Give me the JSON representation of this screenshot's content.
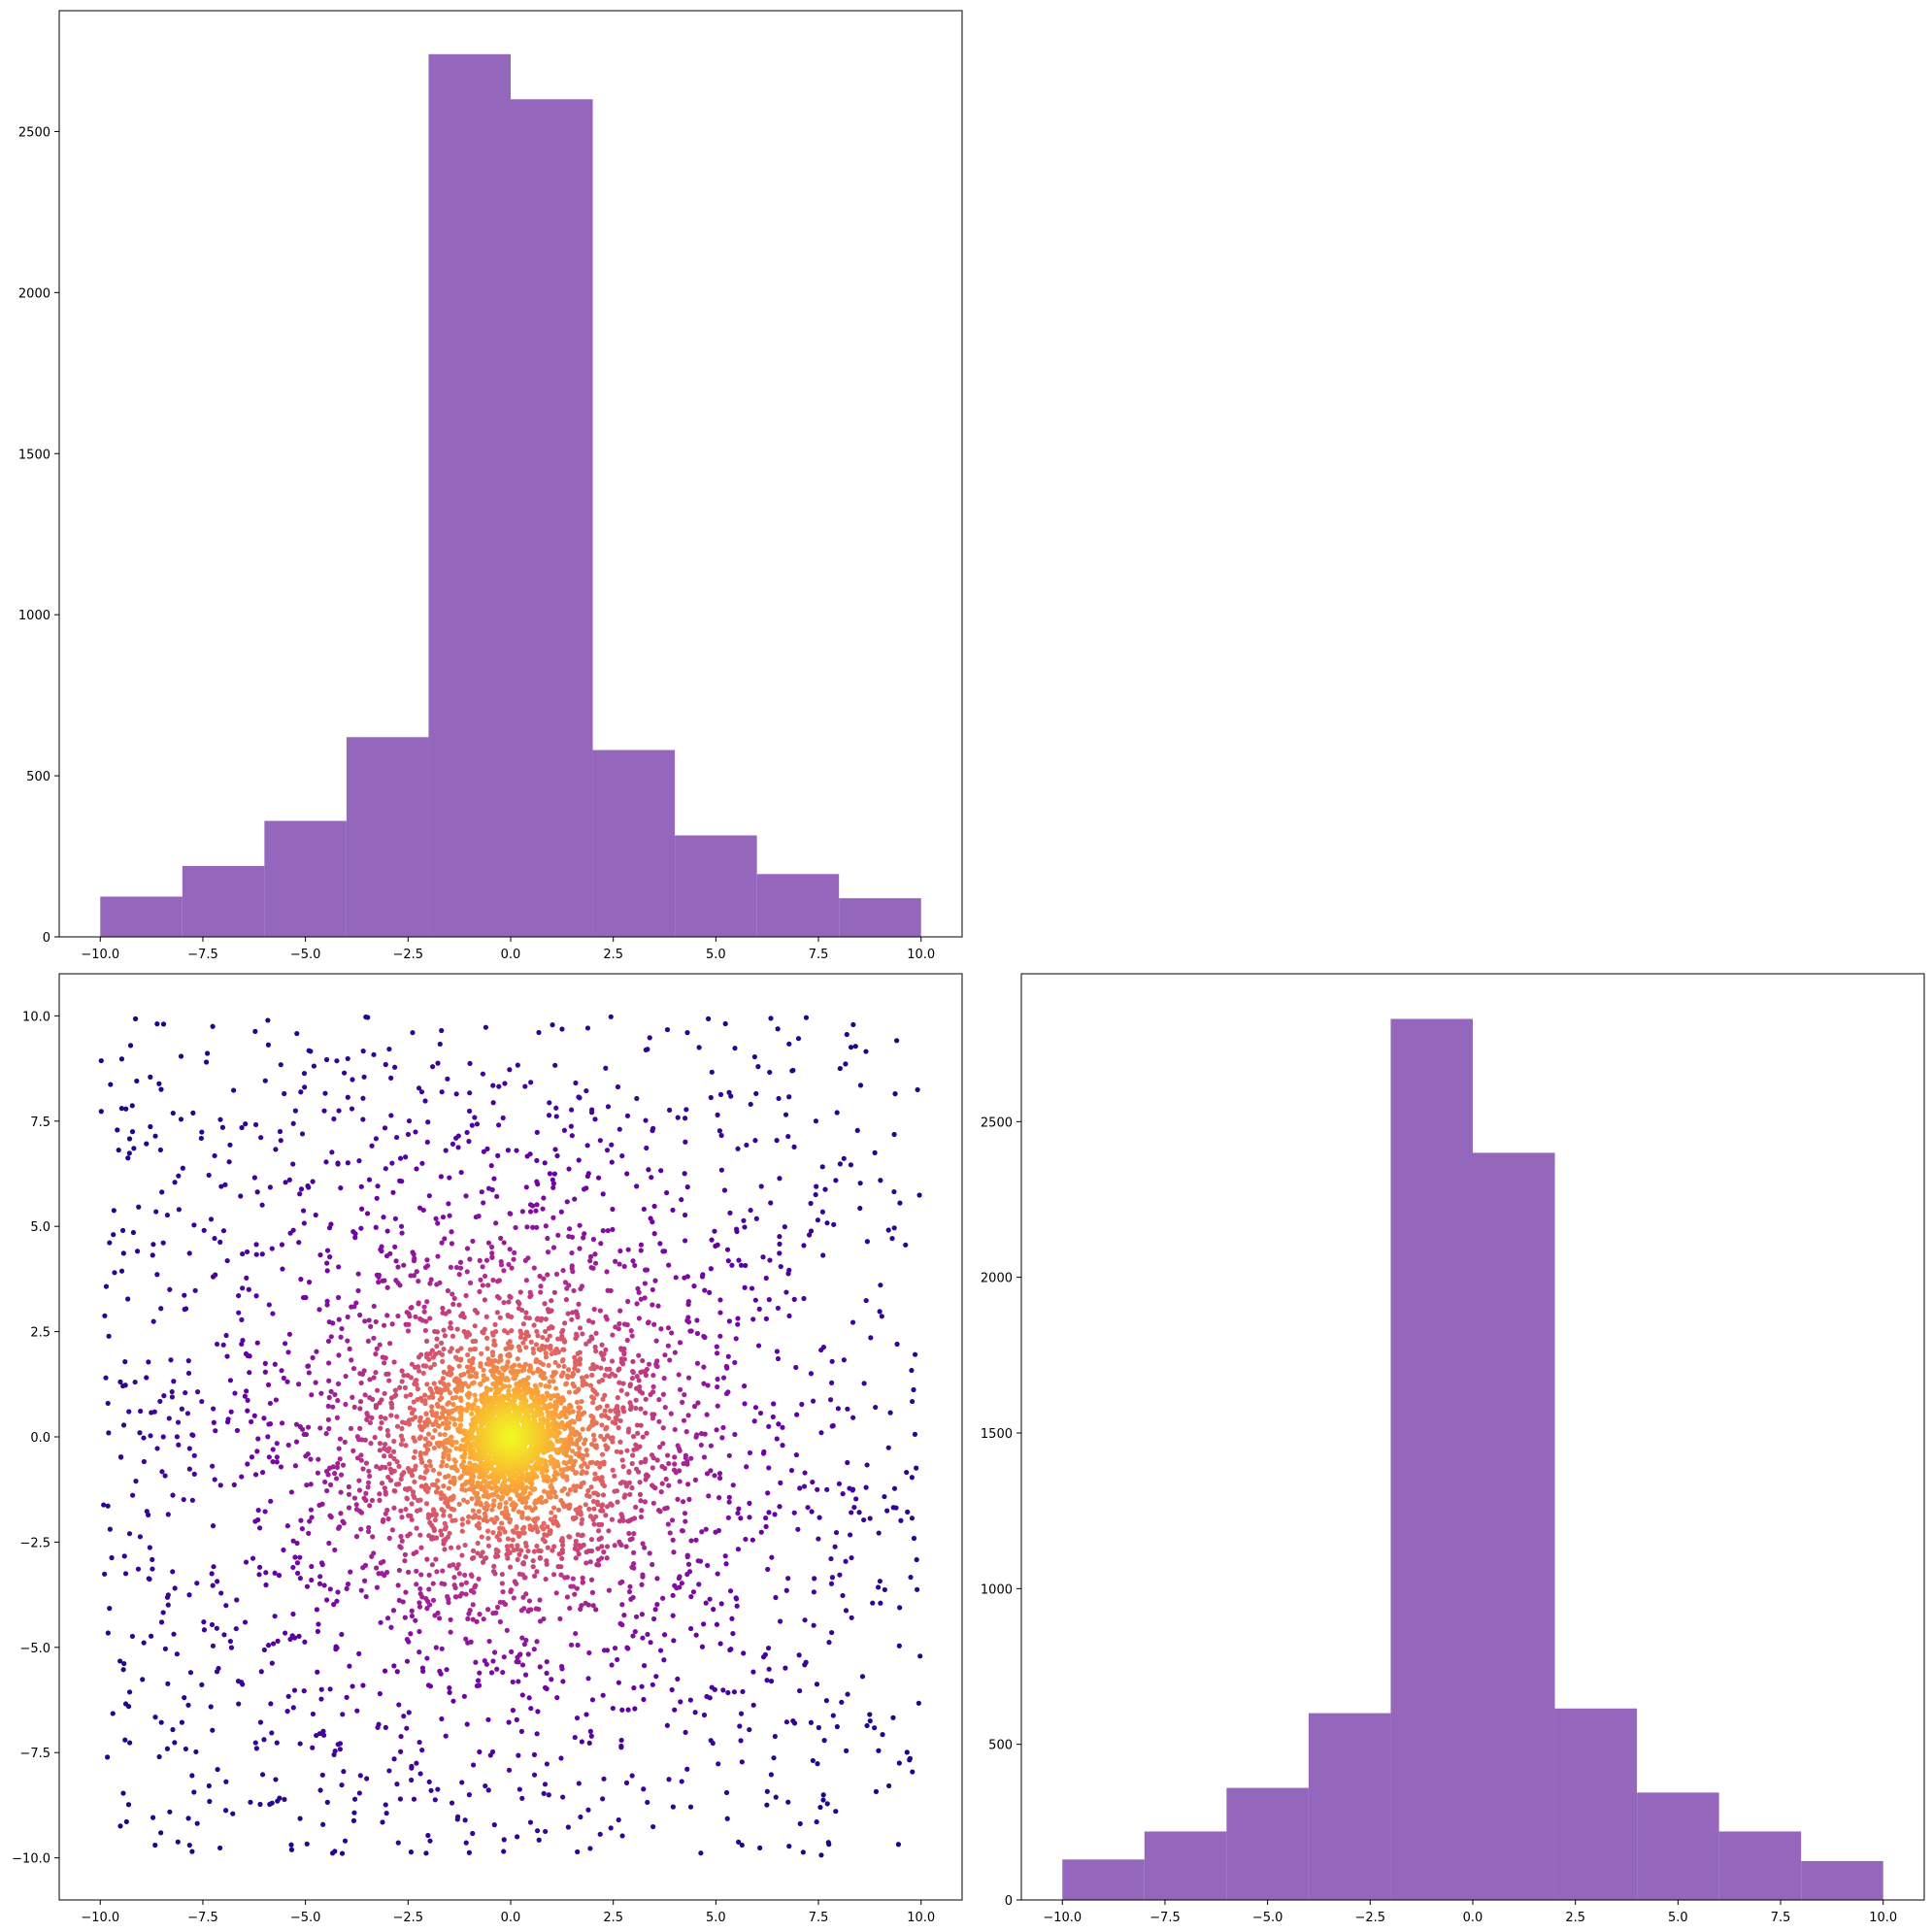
{
  "chart_data": [
    {
      "panel": "top-left",
      "type": "histogram",
      "color": "#9467bd",
      "bin_edges": [
        -10,
        -8,
        -6,
        -4,
        -2,
        0,
        2,
        4,
        6,
        8,
        10
      ],
      "counts": [
        125,
        220,
        360,
        620,
        2740,
        2600,
        580,
        315,
        195,
        120
      ],
      "xlim": [
        -11,
        11
      ],
      "ylim": [
        0,
        2875
      ],
      "xticks": [
        -10,
        -7.5,
        -5,
        -2.5,
        0,
        2.5,
        5,
        7.5,
        10
      ],
      "xtick_labels": [
        "−10.0",
        "−7.5",
        "−5.0",
        "−2.5",
        "0.0",
        "2.5",
        "5.0",
        "7.5",
        "10.0"
      ],
      "yticks": [
        0,
        500,
        1000,
        1500,
        2000,
        2500
      ],
      "ytick_labels": [
        "0",
        "500",
        "1000",
        "1500",
        "2000",
        "2500"
      ],
      "grid": false
    },
    {
      "panel": "bottom-left",
      "type": "scatter",
      "description_of_data": "about 5000 points in [-10,10] x [-10,10], heavy-tailed around (0,0); color = density (plasma colormap, dark purple at edges to yellow at center)",
      "n_points": 5000,
      "colormap": [
        "#0d0887",
        "#6a00a8",
        "#b12a90",
        "#e16462",
        "#fca636",
        "#f0f921"
      ],
      "xlim": [
        -11,
        11
      ],
      "ylim": [
        -11,
        11
      ],
      "xticks": [
        -10,
        -7.5,
        -5,
        -2.5,
        0,
        2.5,
        5,
        7.5,
        10
      ],
      "xtick_labels": [
        "−10.0",
        "−7.5",
        "−5.0",
        "−2.5",
        "0.0",
        "2.5",
        "5.0",
        "7.5",
        "10.0"
      ],
      "yticks": [
        -10,
        -7.5,
        -5,
        -2.5,
        0,
        2.5,
        5,
        7.5,
        10
      ],
      "ytick_labels": [
        "−10.0",
        "−7.5",
        "−5.0",
        "−2.5",
        "0.0",
        "2.5",
        "5.0",
        "7.5",
        "10.0"
      ],
      "grid": false
    },
    {
      "panel": "bottom-right",
      "type": "histogram",
      "color": "#9467bd",
      "bin_edges": [
        -10,
        -8,
        -6,
        -4,
        -2,
        0,
        2,
        4,
        6,
        8,
        10
      ],
      "counts": [
        130,
        220,
        360,
        600,
        2830,
        2400,
        615,
        345,
        220,
        125
      ],
      "xlim": [
        -11,
        11
      ],
      "ylim": [
        0,
        2975
      ],
      "xticks": [
        -10,
        -7.5,
        -5,
        -2.5,
        0,
        2.5,
        5,
        7.5,
        10
      ],
      "xtick_labels": [
        "−10.0",
        "−7.5",
        "−5.0",
        "−2.5",
        "0.0",
        "2.5",
        "5.0",
        "7.5",
        "10.0"
      ],
      "yticks": [
        0,
        500,
        1000,
        1500,
        2000,
        2500
      ],
      "ytick_labels": [
        "0",
        "500",
        "1000",
        "1500",
        "2000",
        "2500"
      ],
      "grid": false
    }
  ]
}
